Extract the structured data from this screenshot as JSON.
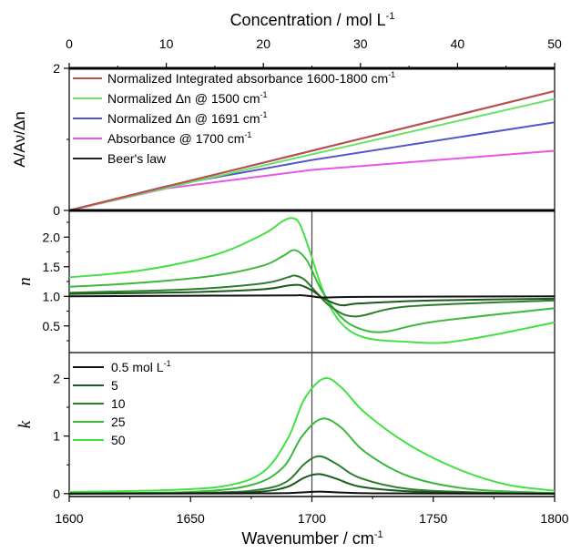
{
  "chart_data": [
    {
      "panel": "top",
      "type": "line",
      "xlabel_prefix": "Concentration / mol L",
      "xlabel_sup": "-1",
      "ylabel": "A/Aν/Δn",
      "xlim": [
        0,
        50
      ],
      "ylim": [
        0,
        2
      ],
      "xticks": [
        "0",
        "10",
        "20",
        "30",
        "40",
        "50"
      ],
      "yticks": [
        "0",
        "2"
      ],
      "legend": "top-left",
      "series": [
        {
          "name": "Normalized Integrated absorbance 1600-1800 cm",
          "sup": "-1",
          "color": "#c0504d",
          "x": [
            0,
            25,
            50
          ],
          "y": [
            0,
            0.84,
            1.68
          ]
        },
        {
          "name": "Normalized Δn @ 1500 cm",
          "sup": "-1",
          "color": "#66e366",
          "x": [
            0,
            25,
            50
          ],
          "y": [
            0,
            0.79,
            1.57
          ]
        },
        {
          "name": "Normalized Δn @ 1691 cm",
          "sup": "-1",
          "color": "#5555cc",
          "x": [
            0,
            10,
            25,
            50
          ],
          "y": [
            0,
            0.34,
            0.71,
            1.24
          ]
        },
        {
          "name": "Absorbance @ 1700 cm",
          "sup": "-1",
          "color": "#e655e6",
          "x": [
            0,
            10,
            25,
            50
          ],
          "y": [
            0,
            0.31,
            0.57,
            0.84
          ]
        },
        {
          "name": "Beer's law",
          "sup": "",
          "color": "#222222",
          "x": [
            0,
            25,
            50
          ],
          "y": [
            0,
            0.84,
            1.68
          ]
        }
      ]
    },
    {
      "panel": "middle",
      "type": "line",
      "ylabel": "n",
      "xlim": [
        1600,
        1800
      ],
      "ylim": [
        0.05,
        2.45
      ],
      "yticks": [
        "0.5",
        "1.0",
        "1.5",
        "2.0"
      ],
      "series": [
        {
          "name": "0.5 mol L-1",
          "color": "#111111",
          "x": [
            1600,
            1650,
            1690,
            1695,
            1700,
            1705,
            1720,
            1800
          ],
          "y": [
            1.0,
            1.01,
            1.015,
            1.02,
            1.0,
            0.98,
            0.99,
            1.0
          ]
        },
        {
          "name": "5",
          "color": "#1c5a1c",
          "x": [
            1600,
            1650,
            1680,
            1690,
            1695,
            1700,
            1705,
            1712,
            1720,
            1750,
            1800
          ],
          "y": [
            1.04,
            1.07,
            1.12,
            1.18,
            1.19,
            1.1,
            0.96,
            0.85,
            0.88,
            0.93,
            0.96
          ]
        },
        {
          "name": "10",
          "color": "#2e7d2e",
          "x": [
            1600,
            1650,
            1680,
            1690,
            1693,
            1697,
            1702,
            1708,
            1718,
            1740,
            1800
          ],
          "y": [
            1.06,
            1.12,
            1.22,
            1.32,
            1.35,
            1.28,
            1.06,
            0.82,
            0.66,
            0.83,
            0.93
          ]
        },
        {
          "name": "25",
          "color": "#3cb83c",
          "x": [
            1600,
            1630,
            1660,
            1680,
            1688,
            1693,
            1698,
            1704,
            1712,
            1720,
            1730,
            1750,
            1800
          ],
          "y": [
            1.16,
            1.23,
            1.35,
            1.52,
            1.68,
            1.78,
            1.6,
            1.1,
            0.65,
            0.45,
            0.4,
            0.57,
            0.8
          ]
        },
        {
          "name": "50",
          "color": "#44e044",
          "x": [
            1600,
            1630,
            1660,
            1680,
            1688,
            1692,
            1695,
            1699,
            1705,
            1712,
            1722,
            1740,
            1755,
            1775,
            1800
          ],
          "y": [
            1.32,
            1.44,
            1.7,
            2.05,
            2.27,
            2.32,
            2.22,
            1.78,
            1.05,
            0.55,
            0.3,
            0.23,
            0.22,
            0.35,
            0.56
          ]
        }
      ]
    },
    {
      "panel": "bottom",
      "type": "line",
      "xlabel_prefix": "Wavenumber / cm",
      "xlabel_sup": "-1",
      "ylabel": "k",
      "xlim": [
        1600,
        1800
      ],
      "ylim": [
        -0.05,
        2.45
      ],
      "xticks": [
        "1600",
        "1650",
        "1700",
        "1750",
        "1800"
      ],
      "yticks": [
        "0",
        "1",
        "2"
      ],
      "legend": "top-left",
      "legend_unit_sup": "-1",
      "series": [
        {
          "name": "0.5 mol L",
          "color": "#111111",
          "x": [
            1600,
            1680,
            1695,
            1703,
            1712,
            1730,
            1800
          ],
          "y": [
            0.0,
            0.005,
            0.02,
            0.035,
            0.02,
            0.005,
            0.0
          ]
        },
        {
          "name": "5",
          "color": "#1c5a1c",
          "x": [
            1600,
            1660,
            1680,
            1690,
            1697,
            1703,
            1710,
            1720,
            1740,
            1770,
            1800
          ],
          "y": [
            0.0,
            0.01,
            0.04,
            0.12,
            0.28,
            0.34,
            0.26,
            0.12,
            0.04,
            0.01,
            0.0
          ]
        },
        {
          "name": "10",
          "color": "#2e7d2e",
          "x": [
            1600,
            1660,
            1680,
            1690,
            1697,
            1703,
            1710,
            1720,
            1740,
            1770,
            1800
          ],
          "y": [
            0.0,
            0.02,
            0.08,
            0.22,
            0.52,
            0.65,
            0.52,
            0.27,
            0.08,
            0.02,
            0.0
          ]
        },
        {
          "name": "25",
          "color": "#3cb83c",
          "x": [
            1600,
            1650,
            1675,
            1688,
            1696,
            1704,
            1712,
            1722,
            1740,
            1765,
            1800
          ],
          "y": [
            0.01,
            0.03,
            0.15,
            0.45,
            1.0,
            1.3,
            1.15,
            0.72,
            0.3,
            0.08,
            0.01
          ]
        },
        {
          "name": "50",
          "color": "#44e044",
          "x": [
            1600,
            1640,
            1665,
            1680,
            1690,
            1697,
            1705,
            1712,
            1722,
            1740,
            1760,
            1780,
            1800
          ],
          "y": [
            0.03,
            0.06,
            0.14,
            0.38,
            0.95,
            1.65,
            2.0,
            1.85,
            1.4,
            0.85,
            0.43,
            0.16,
            0.05
          ]
        }
      ]
    }
  ]
}
